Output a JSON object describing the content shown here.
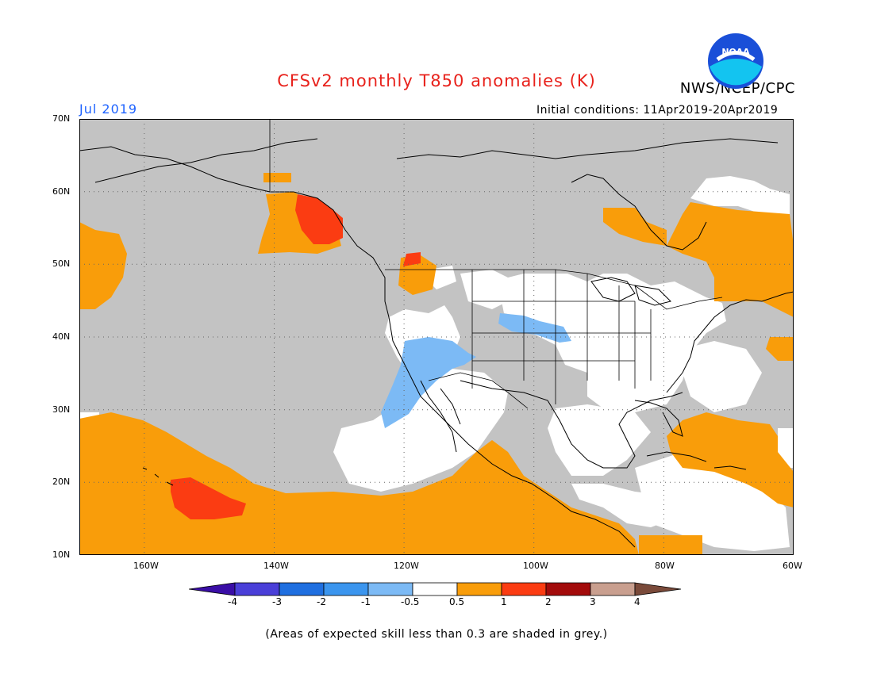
{
  "title": "CFSv2 monthly T850 anomalies (K)",
  "organization": "NWS/NCEP/CPC",
  "logo_text": "NOAA",
  "month_label": "Jul 2019",
  "initial_conditions": "Initial conditions: 11Apr2019-20Apr2019",
  "footnote": "(Areas of expected skill less than 0.3 are shaded in grey.)",
  "lat_labels": [
    "70N",
    "60N",
    "50N",
    "40N",
    "30N",
    "20N",
    "10N"
  ],
  "lon_labels": [
    "160W",
    "140W",
    "120W",
    "100W",
    "80W",
    "60W"
  ],
  "colorbar": {
    "tick_labels": [
      "-4",
      "-3",
      "-2",
      "-1",
      "-0.5",
      "0.5",
      "1",
      "2",
      "3",
      "4"
    ],
    "colors": [
      "#3a0ea6",
      "#4a3fd8",
      "#1f6fe0",
      "#3b95ee",
      "#7cbaf5",
      "#ffffff",
      "#f99d0a",
      "#fb3c12",
      "#a30b0b",
      "#c99f8f",
      "#7a4a3a"
    ]
  },
  "colors": {
    "skill_grey": "#c3c3c3",
    "positive_small": "#f99d0a",
    "positive_mid": "#fb3c12",
    "negative_small": "#7cbaf5",
    "title": "#e8221c",
    "month": "#1e63ff"
  }
}
